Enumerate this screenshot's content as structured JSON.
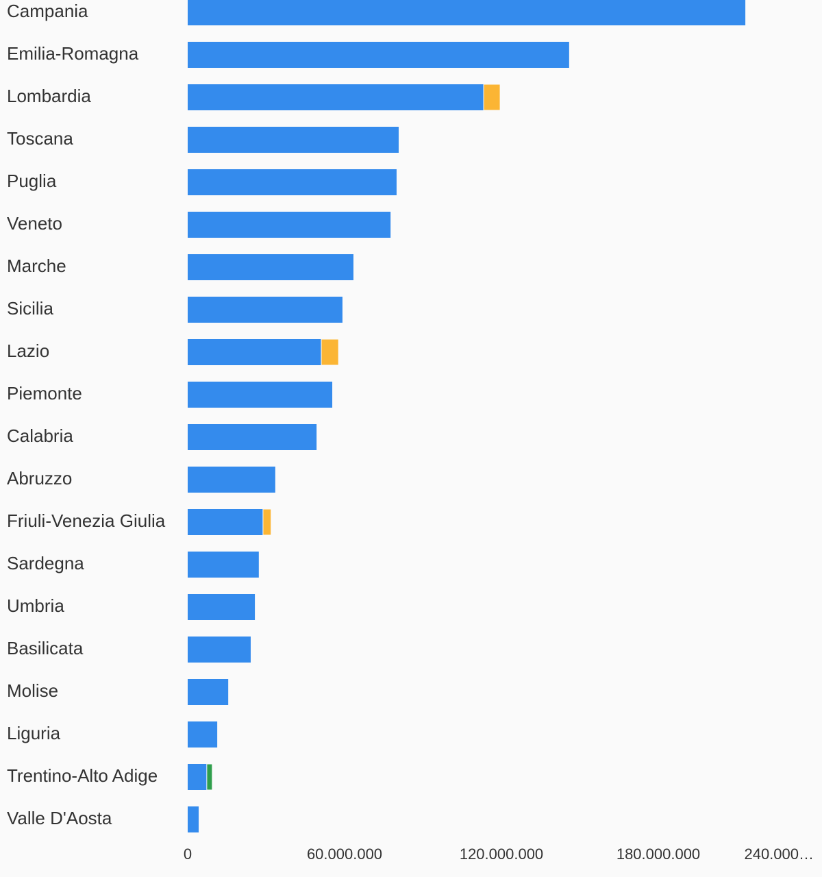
{
  "chart_data": {
    "type": "bar",
    "orientation": "horizontal",
    "stacked": true,
    "categories": [
      "Campania",
      "Emilia-Romagna",
      "Lombardia",
      "Toscana",
      "Puglia",
      "Veneto",
      "Marche",
      "Sicilia",
      "Lazio",
      "Piemonte",
      "Calabria",
      "Abruzzo",
      "Friuli-Venezia Giulia",
      "Sardegna",
      "Umbria",
      "Basilicata",
      "Molise",
      "Liguria",
      "Trentino-Alto Adige",
      "Valle D'Aosta"
    ],
    "series": [
      {
        "color": "#348bed",
        "values": [
          213300000,
          145900000,
          113200000,
          80700000,
          79900000,
          77600000,
          63400000,
          59200000,
          51100000,
          55300000,
          49300000,
          33500000,
          28800000,
          27200000,
          25700000,
          24100000,
          15500000,
          11300000,
          7300000,
          4200000
        ]
      },
      {
        "color": "#fbb534",
        "values": [
          0,
          0,
          6300000,
          0,
          0,
          0,
          0,
          0,
          6600000,
          0,
          0,
          0,
          3100000,
          0,
          0,
          0,
          0,
          0,
          0,
          0
        ]
      },
      {
        "color": "#2f9e4c",
        "values": [
          0,
          0,
          0,
          0,
          0,
          0,
          0,
          0,
          0,
          0,
          0,
          0,
          0,
          0,
          0,
          0,
          0,
          0,
          2100000,
          0
        ]
      }
    ],
    "xlim": [
      0,
      240000000
    ],
    "xticks": [
      0,
      {
        "value": 60000000,
        "label": "60.000.000"
      },
      {
        "value": 120000000,
        "label": "120.000.000"
      },
      {
        "value": 180000000,
        "label": "180.000.000"
      },
      {
        "value": 240000000,
        "label": "240.000…"
      }
    ]
  }
}
